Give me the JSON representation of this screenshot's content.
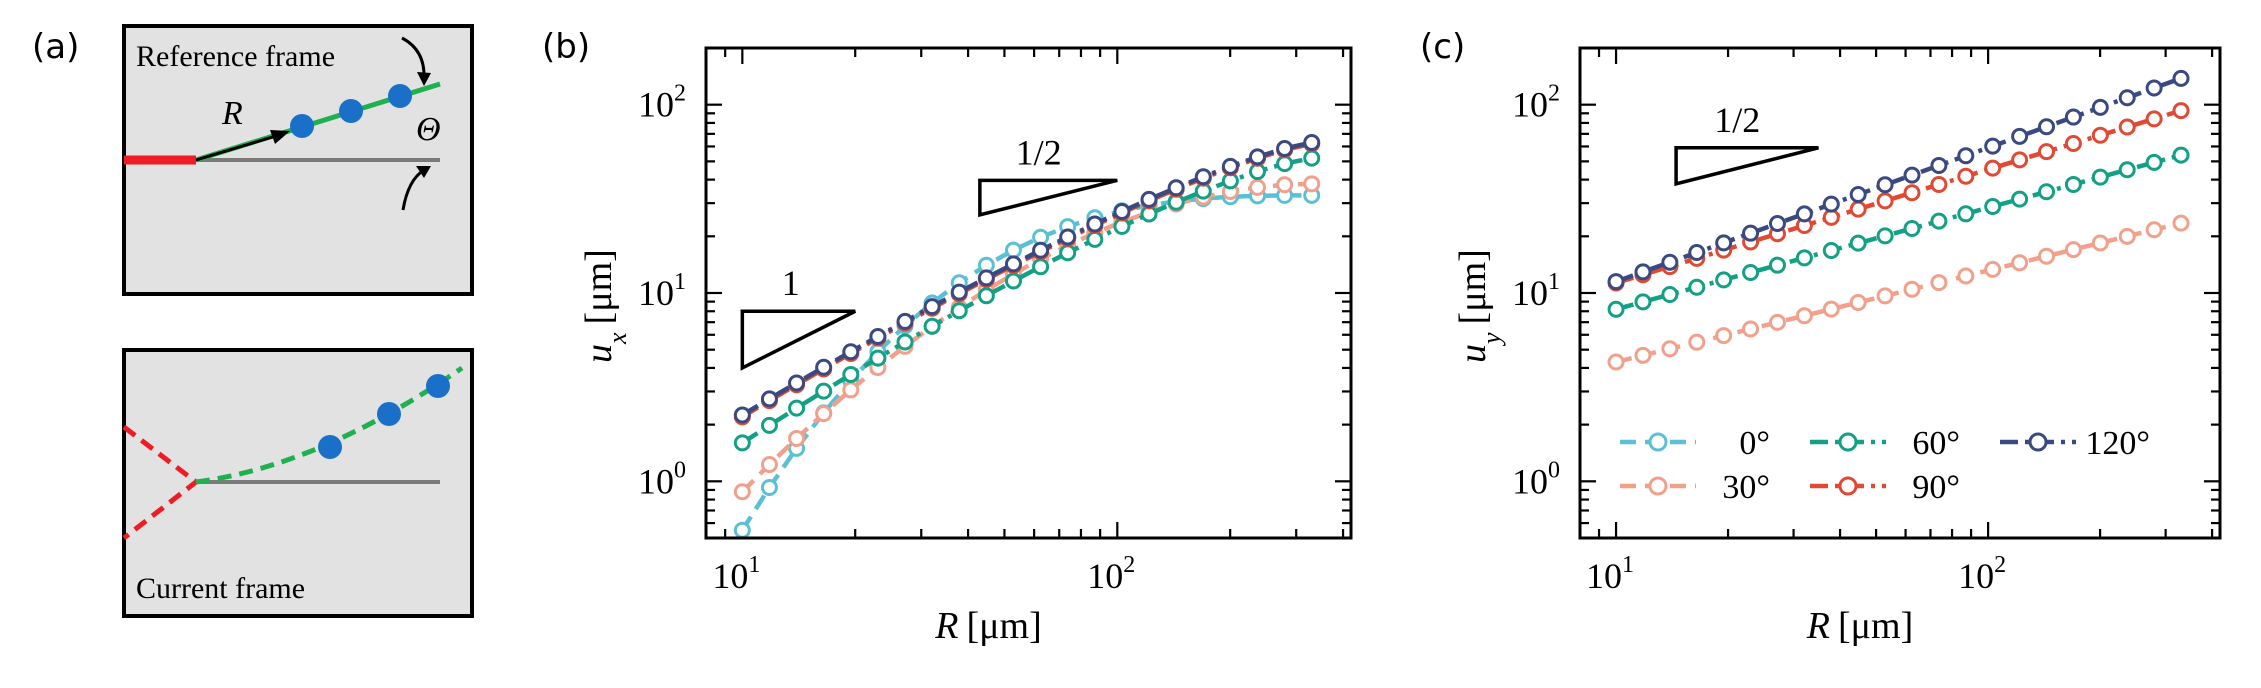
{
  "panels": {
    "a": {
      "label": "(a)",
      "reference_frame": "Reference frame",
      "current_frame": "Current frame",
      "r_symbol": "R",
      "theta_symbol": "Θ"
    },
    "b": {
      "label": "(b)"
    },
    "c": {
      "label": "(c)"
    }
  },
  "colors": {
    "0": "#5bc0d4",
    "30": "#f0a08b",
    "60": "#14a085",
    "90": "#e04a35",
    "120": "#3a4a80",
    "crack": "#ee1c24",
    "path": "#20b050",
    "node": "#1a70c8",
    "panel_bg": "#e2e2e2"
  },
  "chart_data": [
    {
      "type": "line",
      "panel": "b",
      "xscale": "log",
      "yscale": "log",
      "xlabel_main": "R",
      "xlabel_unit": "[μm]",
      "ylabel_main": "u",
      "ylabel_sub": "x",
      "ylabel_unit": "[μm]",
      "xlim": [
        8,
        420
      ],
      "ylim": [
        0.5,
        200
      ],
      "xticks": [
        {
          "base": "10",
          "exp": "1",
          "value": 10
        },
        {
          "base": "10",
          "exp": "2",
          "value": 100
        }
      ],
      "yticks": [
        {
          "base": "10",
          "exp": "0",
          "value": 1
        },
        {
          "base": "10",
          "exp": "1",
          "value": 10
        },
        {
          "base": "10",
          "exp": "2",
          "value": 100
        }
      ],
      "slope_labels": [
        {
          "text": "1",
          "slope": 1,
          "x0": 10,
          "x1": 20,
          "y0": 4.0
        },
        {
          "text": "1/2",
          "slope": 0.5,
          "x0": 43,
          "x1": 100,
          "y0": 26.0
        }
      ],
      "series": [
        {
          "name": "0°",
          "angle": "0",
          "dash": "dash",
          "x0": 10,
          "x1": 330,
          "n": 22,
          "fn": "0",
          "y_first": 0.55,
          "y_last": 33
        },
        {
          "name": "30°",
          "angle": "30",
          "dash": "dash",
          "x0": 10,
          "x1": 330,
          "n": 22,
          "fn": "30",
          "y_first": 0.88,
          "y_last": 38
        },
        {
          "name": "60°",
          "angle": "60",
          "dash": "dashdot",
          "x0": 10,
          "x1": 330,
          "n": 22,
          "fn": "60",
          "y_first": 1.6,
          "y_last": 52
        },
        {
          "name": "90°",
          "angle": "90",
          "dash": "dashdot",
          "x0": 10,
          "x1": 330,
          "n": 22,
          "fn": "hi",
          "y_first": 2.2,
          "y_last": 62
        },
        {
          "name": "120°",
          "angle": "120",
          "dash": "dashdot",
          "x0": 10,
          "x1": 330,
          "n": 22,
          "fn": "hi",
          "y_first": 2.25,
          "y_last": 63
        }
      ]
    },
    {
      "type": "line",
      "panel": "c",
      "xscale": "log",
      "yscale": "log",
      "xlabel_main": "R",
      "xlabel_unit": "[μm]",
      "ylabel_main": "u",
      "ylabel_sub": "y",
      "ylabel_unit": "[μm]",
      "xlim": [
        8,
        420
      ],
      "ylim": [
        0.5,
        200
      ],
      "xticks": [
        {
          "base": "10",
          "exp": "1",
          "value": 10
        },
        {
          "base": "10",
          "exp": "2",
          "value": 100
        }
      ],
      "yticks": [
        {
          "base": "10",
          "exp": "0",
          "value": 1
        },
        {
          "base": "10",
          "exp": "1",
          "value": 10
        },
        {
          "base": "10",
          "exp": "2",
          "value": 100
        }
      ],
      "slope_labels": [
        {
          "text": "1/2",
          "slope": 0.5,
          "x0": 14.5,
          "x1": 35,
          "y0": 38.0
        }
      ],
      "series": [
        {
          "name": "30°",
          "angle": "30",
          "dash": "dash",
          "x0": 10,
          "x1": 330,
          "n": 22,
          "fn": "pow",
          "y_first": 4.3,
          "y_last": 23.5
        },
        {
          "name": "60°",
          "angle": "60",
          "dash": "dashdot",
          "x0": 10,
          "x1": 330,
          "n": 22,
          "fn": "pow",
          "y_first": 8.2,
          "y_last": 54
        },
        {
          "name": "90°",
          "angle": "90",
          "dash": "dashdot",
          "x0": 10,
          "x1": 330,
          "n": 22,
          "fn": "pow",
          "y_first": 11.3,
          "y_last": 93
        },
        {
          "name": "120°",
          "angle": "120",
          "dash": "dashdot",
          "x0": 10,
          "x1": 330,
          "n": 22,
          "fn": "pow",
          "y_first": 11.5,
          "y_last": 138
        }
      ],
      "legend": {
        "placement": "lower-center",
        "entries": [
          {
            "name": "0°",
            "angle": "0",
            "dash": "dash"
          },
          {
            "name": "60°",
            "angle": "60",
            "dash": "dashdot"
          },
          {
            "name": "120°",
            "angle": "120",
            "dash": "dashdot"
          },
          {
            "name": "30°",
            "angle": "30",
            "dash": "dash"
          },
          {
            "name": "90°",
            "angle": "90",
            "dash": "dashdot"
          }
        ]
      }
    }
  ]
}
